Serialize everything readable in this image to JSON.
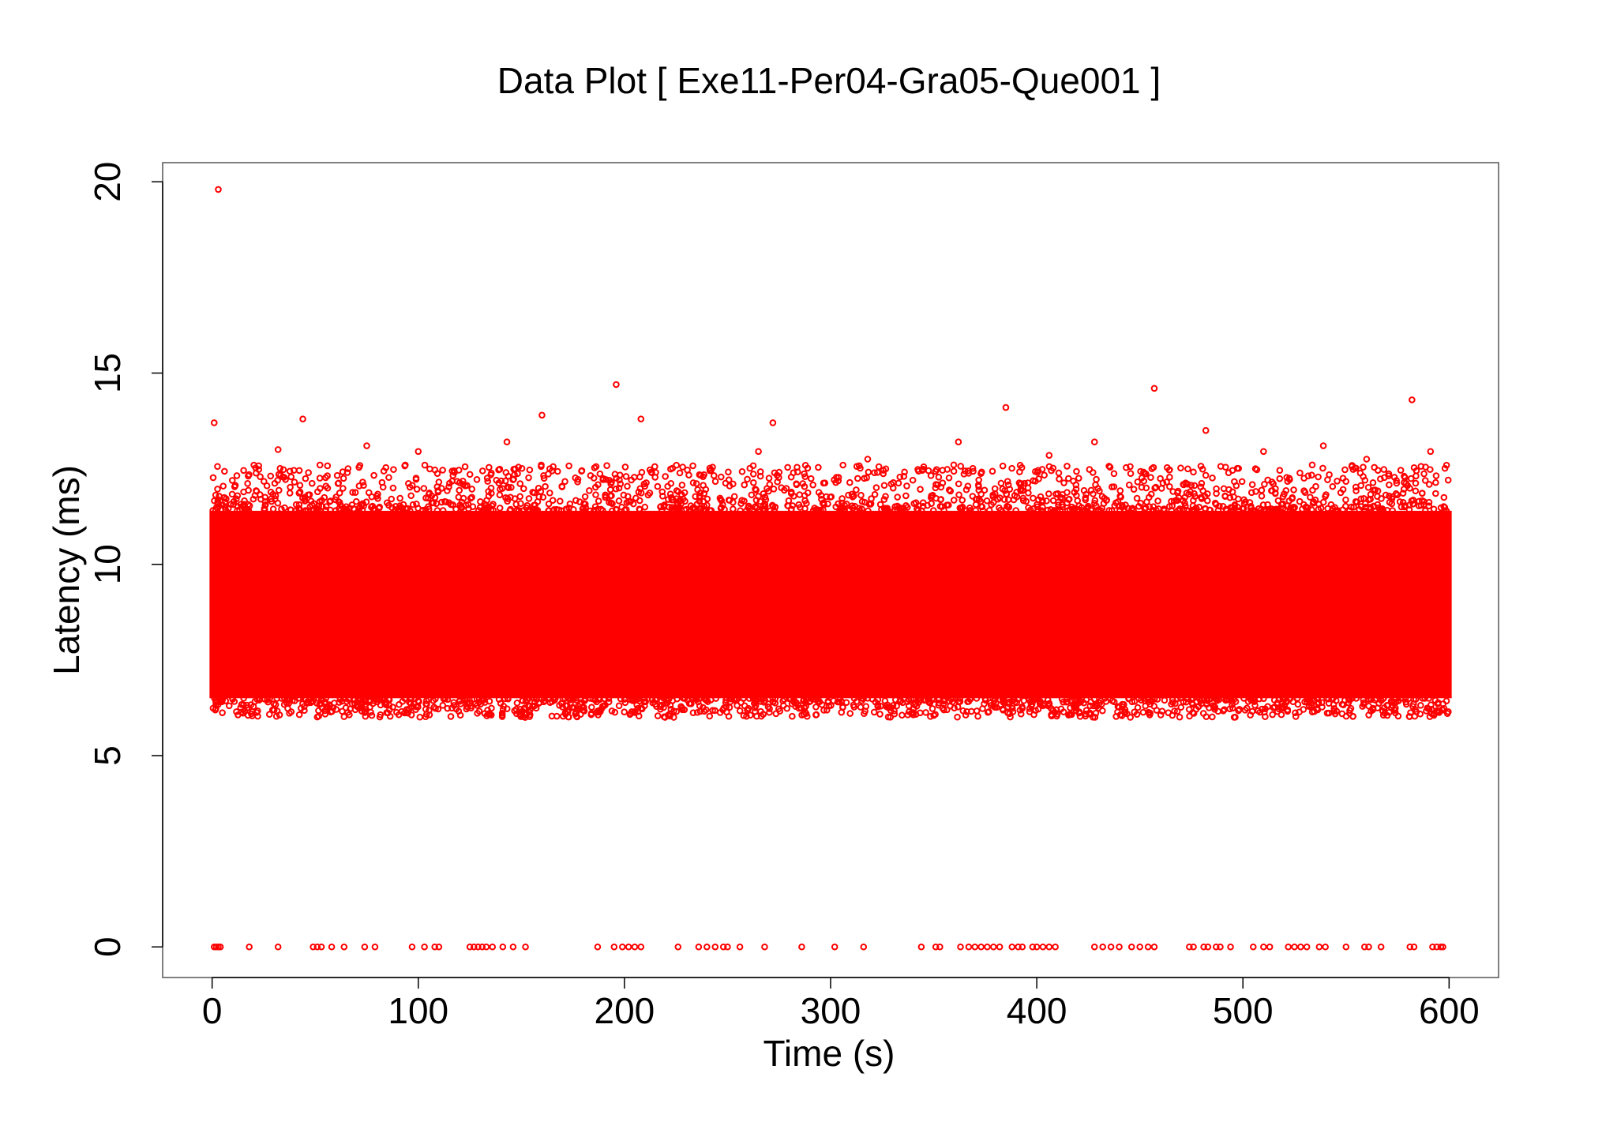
{
  "chart_data": {
    "type": "scatter",
    "title": "Data Plot [ Exe11-Per04-Gra05-Que001 ]",
    "xlabel": "Time (s)",
    "ylabel": "Latency (ms)",
    "xlim": [
      -24,
      624
    ],
    "ylim": [
      -0.8,
      20.5
    ],
    "xticks": [
      0,
      100,
      200,
      300,
      400,
      500,
      600
    ],
    "yticks": [
      0,
      5,
      10,
      15,
      20
    ],
    "grid": false,
    "legend": "none",
    "marker": "open-circle",
    "series": [
      {
        "color": "#ff0000",
        "dense_band": {
          "x_range": [
            0,
            600
          ],
          "y_core": [
            6.5,
            11.4
          ],
          "y_floor": 6.0,
          "y_ceiling": 12.6
        },
        "outliers": [
          [
            3,
            19.8
          ],
          [
            1,
            13.7
          ],
          [
            44,
            13.8
          ],
          [
            160,
            13.9
          ],
          [
            143,
            13.2
          ],
          [
            196,
            14.7
          ],
          [
            208,
            13.8
          ],
          [
            272,
            13.7
          ],
          [
            385,
            14.1
          ],
          [
            457,
            14.6
          ],
          [
            482,
            13.5
          ],
          [
            582,
            14.3
          ],
          [
            362,
            13.2
          ],
          [
            428,
            13.2
          ],
          [
            539,
            13.1
          ],
          [
            75,
            13.1
          ],
          [
            32,
            13.0
          ],
          [
            100,
            12.95
          ],
          [
            265,
            12.95
          ],
          [
            318,
            12.75
          ],
          [
            406,
            12.85
          ],
          [
            510,
            12.95
          ],
          [
            560,
            12.75
          ],
          [
            591,
            12.95
          ]
        ],
        "zero_points_x": [
          1,
          2,
          3,
          4,
          18,
          32,
          49,
          51,
          53,
          58,
          64,
          74,
          79,
          97,
          103,
          108,
          110,
          125,
          127,
          129,
          131,
          133,
          136,
          141,
          146,
          152,
          187,
          195,
          199,
          202,
          205,
          208,
          226,
          236,
          240,
          244,
          248,
          250,
          256,
          268,
          286,
          302,
          316,
          344,
          351,
          353,
          363,
          367,
          370,
          373,
          376,
          379,
          382,
          388,
          391,
          393,
          398,
          400,
          403,
          406,
          409,
          428,
          432,
          436,
          440,
          446,
          450,
          454,
          457,
          474,
          476,
          481,
          483,
          487,
          489,
          494,
          505,
          510,
          513,
          522,
          525,
          528,
          531,
          537,
          540,
          550,
          559,
          561,
          567,
          581,
          583,
          592,
          594,
          596,
          597
        ]
      }
    ]
  }
}
